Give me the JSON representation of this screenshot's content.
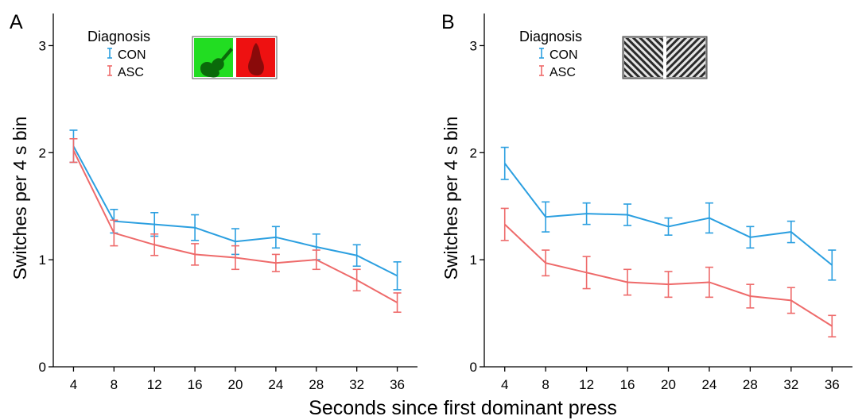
{
  "figure": {
    "shared_xlabel": "Seconds since first dominant press"
  },
  "chart_data": [
    {
      "type": "line",
      "panel_label": "A",
      "ylabel": "Switches per 4 s bin",
      "xlabel": "",
      "x": [
        4,
        8,
        12,
        16,
        20,
        24,
        28,
        32,
        36
      ],
      "xlim": [
        2,
        38
      ],
      "ylim": [
        0,
        3.3
      ],
      "yticks": [
        0,
        1,
        2,
        3
      ],
      "legend": {
        "title": "Diagnosis",
        "placement": "top-left"
      },
      "stimulus_icon": "green-violin-red-pear",
      "series": [
        {
          "name": "CON",
          "color": "#2b9fe0",
          "values": [
            2.06,
            1.36,
            1.33,
            1.3,
            1.17,
            1.21,
            1.12,
            1.04,
            0.85
          ],
          "errors": [
            0.15,
            0.11,
            0.11,
            0.12,
            0.12,
            0.1,
            0.12,
            0.1,
            0.13
          ]
        },
        {
          "name": "ASC",
          "color": "#ee6a6a",
          "values": [
            2.02,
            1.25,
            1.14,
            1.05,
            1.02,
            0.97,
            1.0,
            0.81,
            0.6
          ],
          "errors": [
            0.11,
            0.12,
            0.1,
            0.1,
            0.11,
            0.08,
            0.09,
            0.1,
            0.09
          ]
        }
      ]
    },
    {
      "type": "line",
      "panel_label": "B",
      "ylabel": "Switches per 4 s bin",
      "xlabel": "",
      "x": [
        4,
        8,
        12,
        16,
        20,
        24,
        28,
        32,
        36
      ],
      "xlim": [
        2,
        38
      ],
      "ylim": [
        0,
        3.3
      ],
      "yticks": [
        0,
        1,
        2,
        3
      ],
      "legend": {
        "title": "Diagnosis",
        "placement": "top-left"
      },
      "stimulus_icon": "orthogonal-gratings",
      "series": [
        {
          "name": "CON",
          "color": "#2b9fe0",
          "values": [
            1.9,
            1.4,
            1.43,
            1.42,
            1.31,
            1.39,
            1.21,
            1.26,
            0.95
          ],
          "errors": [
            0.15,
            0.14,
            0.1,
            0.1,
            0.08,
            0.14,
            0.1,
            0.1,
            0.14
          ]
        },
        {
          "name": "ASC",
          "color": "#ee6a6a",
          "values": [
            1.33,
            0.97,
            0.88,
            0.79,
            0.77,
            0.79,
            0.66,
            0.62,
            0.38
          ],
          "errors": [
            0.15,
            0.12,
            0.15,
            0.12,
            0.12,
            0.14,
            0.11,
            0.12,
            0.1
          ]
        }
      ]
    }
  ]
}
